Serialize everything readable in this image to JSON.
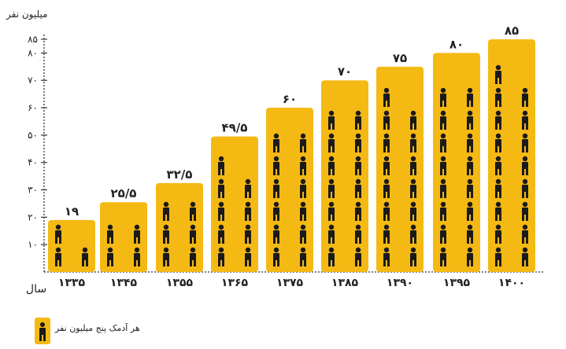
{
  "chart_data": {
    "type": "bar",
    "ylabel": "میلیون نفر",
    "xlabel": "سال",
    "ylim": [
      0,
      85
    ],
    "yticks": [
      "۱۰",
      "۲۰",
      "۳۰",
      "۴۰",
      "۵۰",
      "۶۰",
      "۷۰",
      "۸۰",
      "۸۵"
    ],
    "categories": [
      "۱۳۳۵",
      "۱۳۴۵",
      "۱۳۵۵",
      "۱۳۶۵",
      "۱۳۷۵",
      "۱۳۸۵",
      "۱۳۹۰",
      "۱۳۹۵",
      "۱۴۰۰"
    ],
    "values": [
      19,
      25.5,
      32.5,
      49.5,
      60,
      70,
      75,
      80,
      85
    ],
    "value_labels": [
      "۱۹",
      "۲۵/۵",
      "۳۲/۵",
      "۴۹/۵",
      "۶۰",
      "۷۰",
      "۷۵",
      "۸۰",
      "۸۵"
    ],
    "icon_unit": 5,
    "legend": "هر آدمک پنج میلیون نفر",
    "colors": {
      "bar": "#F5B914",
      "person": "#1a1a1a",
      "text": "#222222"
    }
  }
}
